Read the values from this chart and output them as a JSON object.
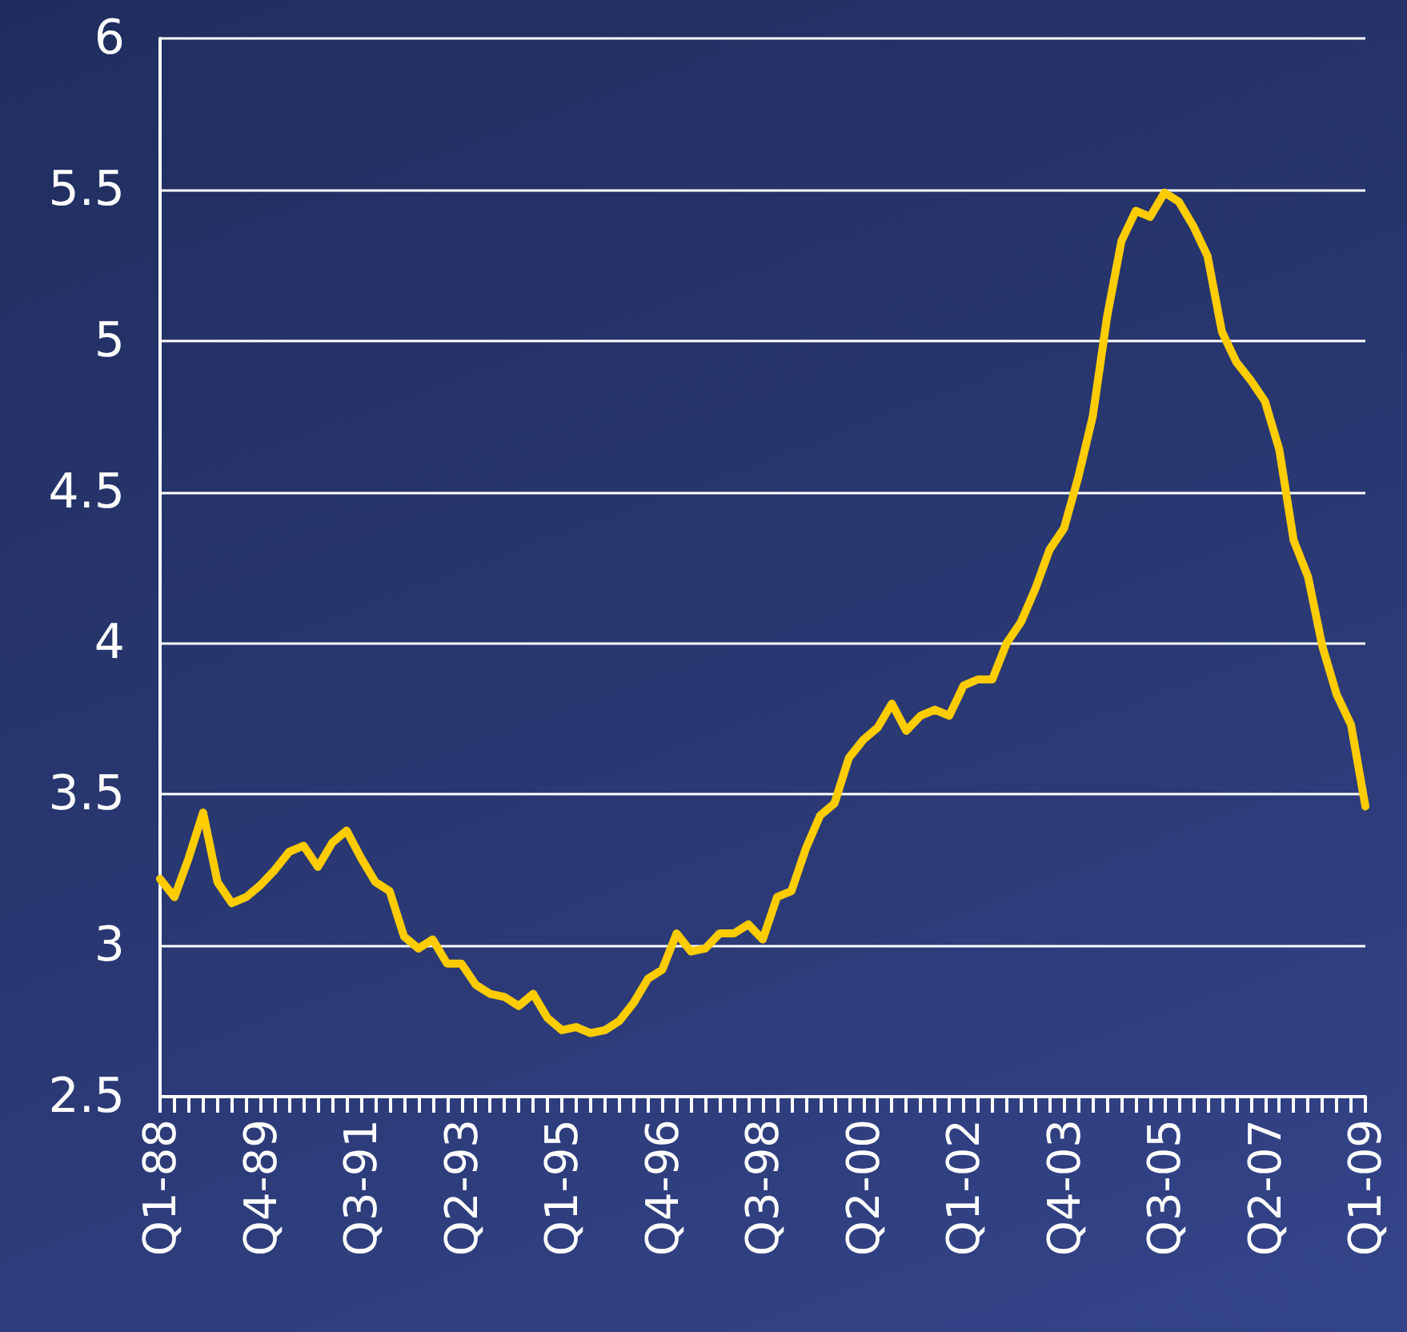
{
  "chart_data": {
    "type": "line",
    "categories": [
      "Q1-88",
      null,
      null,
      null,
      null,
      null,
      null,
      "Q4-89",
      null,
      null,
      null,
      null,
      null,
      null,
      "Q3-91",
      null,
      null,
      null,
      null,
      null,
      null,
      "Q2-93",
      null,
      null,
      null,
      null,
      null,
      null,
      "Q1-95",
      null,
      null,
      null,
      null,
      null,
      null,
      "Q4-96",
      null,
      null,
      null,
      null,
      null,
      null,
      "Q3-98",
      null,
      null,
      null,
      null,
      null,
      null,
      "Q2-00",
      null,
      null,
      null,
      null,
      null,
      null,
      "Q1-02",
      null,
      null,
      null,
      null,
      null,
      null,
      "Q4-03",
      null,
      null,
      null,
      null,
      null,
      null,
      "Q3-05",
      null,
      null,
      null,
      null,
      null,
      null,
      "Q2-07",
      null,
      null,
      null,
      null,
      null,
      null,
      "Q1-09"
    ],
    "series": [
      {
        "color": "#ffcc00",
        "values": [
          3.22,
          3.16,
          3.29,
          3.44,
          3.21,
          3.14,
          3.16,
          3.2,
          3.25,
          3.31,
          3.33,
          3.26,
          3.34,
          3.38,
          3.29,
          3.21,
          3.18,
          3.03,
          2.99,
          3.02,
          2.94,
          2.94,
          2.87,
          2.84,
          2.83,
          2.8,
          2.84,
          2.76,
          2.72,
          2.73,
          2.71,
          2.72,
          2.75,
          2.81,
          2.89,
          2.92,
          3.04,
          2.98,
          2.99,
          3.04,
          3.04,
          3.07,
          3.02,
          3.16,
          3.18,
          3.32,
          3.43,
          3.47,
          3.62,
          3.68,
          3.72,
          3.8,
          3.71,
          3.76,
          3.78,
          3.76,
          3.86,
          3.88,
          3.88,
          4.0,
          4.07,
          4.18,
          4.31,
          4.38,
          4.55,
          4.75,
          5.08,
          5.33,
          5.43,
          5.41,
          5.49,
          5.46,
          5.38,
          5.28,
          5.03,
          4.93,
          4.87,
          4.8,
          4.64,
          4.34,
          4.22,
          3.99,
          3.83,
          3.73,
          3.46
        ]
      }
    ],
    "ylim": [
      2.5,
      6
    ],
    "yticks": [
      2.5,
      3,
      3.5,
      4,
      4.5,
      5,
      5.5,
      6
    ],
    "grid": "y",
    "marker": "none",
    "line_style": "solid"
  }
}
